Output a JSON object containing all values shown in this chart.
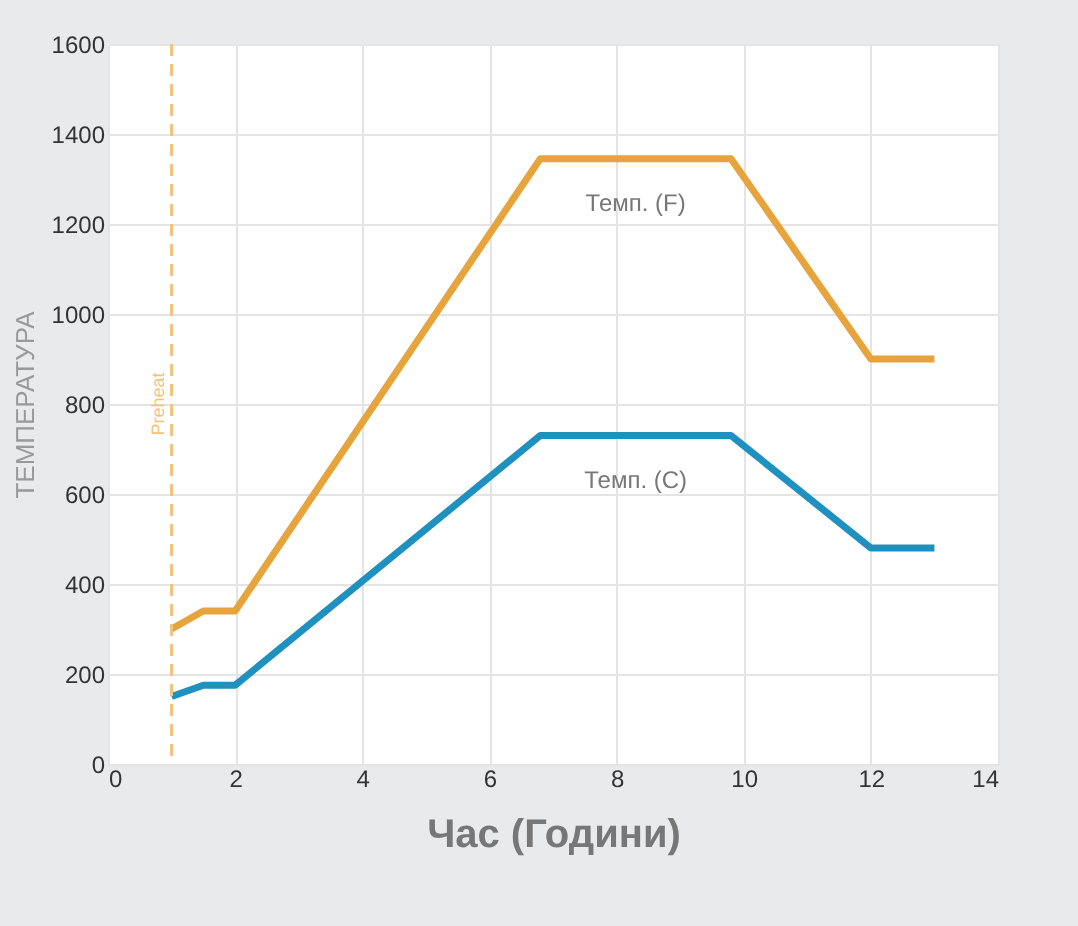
{
  "chart_data": {
    "type": "line",
    "xlabel": "Час (Години)",
    "ylabel": "ТЕМПЕРАТУРА",
    "x": [
      1,
      1.5,
      2,
      6.8,
      9.8,
      12,
      13
    ],
    "series": [
      {
        "name": "Темп. (F)",
        "color": "#e8a43c",
        "values": [
          300,
          340,
          340,
          1345,
          1345,
          900,
          900
        ]
      },
      {
        "name": "Темп. (C)",
        "color": "#1f91c0",
        "values": [
          150,
          175,
          175,
          730,
          730,
          480,
          480
        ]
      }
    ],
    "xlim": [
      0,
      14
    ],
    "xticks": [
      0,
      2,
      4,
      6,
      8,
      10,
      12,
      14
    ],
    "ylim": [
      0,
      1600
    ],
    "yticks": [
      0,
      200,
      400,
      600,
      800,
      1000,
      1200,
      1400,
      1600
    ],
    "ref_lines": [
      {
        "axis": "x",
        "value": 1,
        "label": "Preheat",
        "color": "#f2c27a",
        "line_style": "dashed"
      }
    ],
    "grid": true,
    "legend": false,
    "marker": "none",
    "line_style": "solid"
  }
}
